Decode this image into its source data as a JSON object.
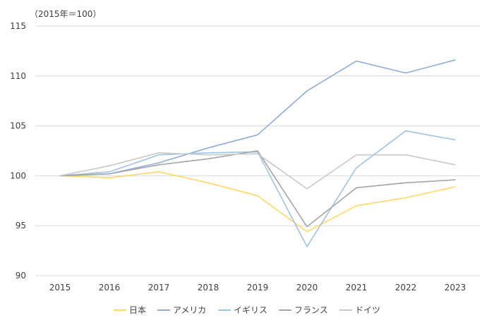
{
  "chart_data": {
    "type": "line",
    "unit_label": "（2015年＝100）",
    "categories": [
      "2015",
      "2016",
      "2017",
      "2018",
      "2019",
      "2020",
      "2021",
      "2022",
      "2023"
    ],
    "ylim": [
      90,
      115
    ],
    "yticks": [
      90,
      95,
      100,
      105,
      110,
      115
    ],
    "grid": true,
    "legend_position": "bottom",
    "series": [
      {
        "name": "日本",
        "color": "#ffd966",
        "values": [
          100,
          99.8,
          100.4,
          99.3,
          98.0,
          94.4,
          97.0,
          97.8,
          98.9
        ]
      },
      {
        "name": "アメリカ",
        "color": "#8faadc",
        "values": [
          100,
          100.2,
          101.3,
          102.8,
          104.1,
          108.5,
          111.5,
          110.3,
          111.6
        ]
      },
      {
        "name": "イギリス",
        "color": "#9dc3e6",
        "values": [
          100,
          100.4,
          102.1,
          102.3,
          102.4,
          92.9,
          100.8,
          104.5,
          103.6
        ]
      },
      {
        "name": "フランス",
        "color": "#a5a5a5",
        "values": [
          100,
          100.2,
          101.1,
          101.7,
          102.5,
          94.9,
          98.8,
          99.3,
          99.6
        ]
      },
      {
        "name": "ドイツ",
        "color": "#c9c9c9",
        "values": [
          100,
          101.0,
          102.3,
          102.1,
          102.2,
          98.7,
          102.1,
          102.1,
          101.1
        ]
      }
    ]
  }
}
